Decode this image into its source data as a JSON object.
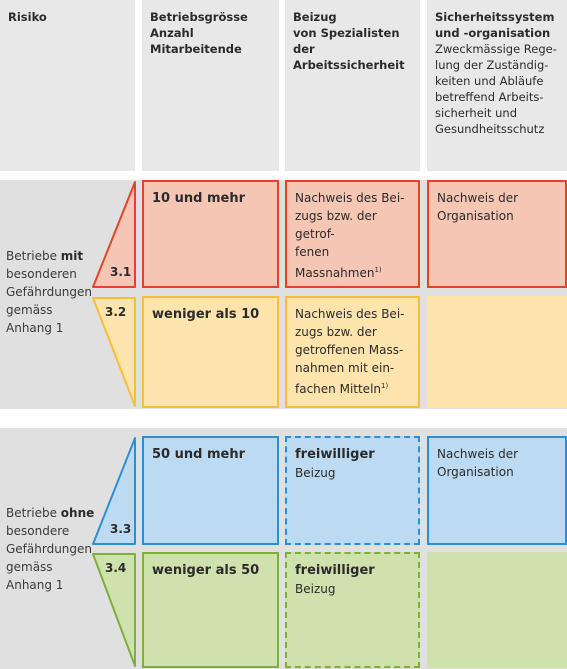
{
  "header": {
    "risk": "Risiko",
    "size": [
      "Betriebsgrösse",
      "Anzahl",
      "Mitarbeitende"
    ],
    "specialists": [
      "Beizug",
      "von Spezialisten der",
      "Arbeitssicherheit"
    ],
    "safety": {
      "title": [
        "Sicherheitssystem",
        "und -organisation"
      ],
      "subtitle": [
        "Zweckmässige Rege-",
        "lung der Zuständig-",
        "keiten und Abläufe",
        "betreffend Arbeits-",
        "sicherheit und",
        "Gesundheitsschutz"
      ]
    }
  },
  "group_with": {
    "label": [
      "Betriebe ",
      "mit",
      "besonderen",
      "Gefährdungen",
      "gemäss",
      "Anhang 1"
    ],
    "rows": [
      {
        "code": "3.1",
        "size": "10 und mehr",
        "specialists": [
          "Nachweis des Bei-",
          "zugs bzw. der getrof-",
          "fenen Massnahmen"
        ],
        "footnote": "1)",
        "organisation": [
          "Nachweis der",
          "Organisation"
        ],
        "fill": "#f6c6b4",
        "border": "#e2442a"
      },
      {
        "code": "3.2",
        "size": "weniger als 10",
        "specialists": [
          "Nachweis des Bei-",
          "zugs bzw. der",
          "getroffenen Mass-",
          "nahmen mit ein-",
          "fachen Mitteln"
        ],
        "footnote": "1)",
        "fill": "#fde4ad",
        "border": "#f7be3a"
      }
    ]
  },
  "group_without": {
    "label": [
      "Betriebe ",
      "ohne",
      "besondere",
      "Gefährdungen",
      "gemäss",
      "Anhang 1"
    ],
    "rows": [
      {
        "code": "3.3",
        "size": "50 und mehr",
        "specialists_bold": "freiwilliger",
        "specialists_rest": " Beizug",
        "organisation": [
          "Nachweis der",
          "Organisation"
        ],
        "fill": "#bcdaf2",
        "border": "#2b8fd1"
      },
      {
        "code": "3.4",
        "size": "weniger als 50",
        "specialists_bold": "freiwilliger",
        "specialists_rest": " Beizug",
        "fill": "#cfe1ac",
        "border": "#7daf3c"
      }
    ]
  }
}
